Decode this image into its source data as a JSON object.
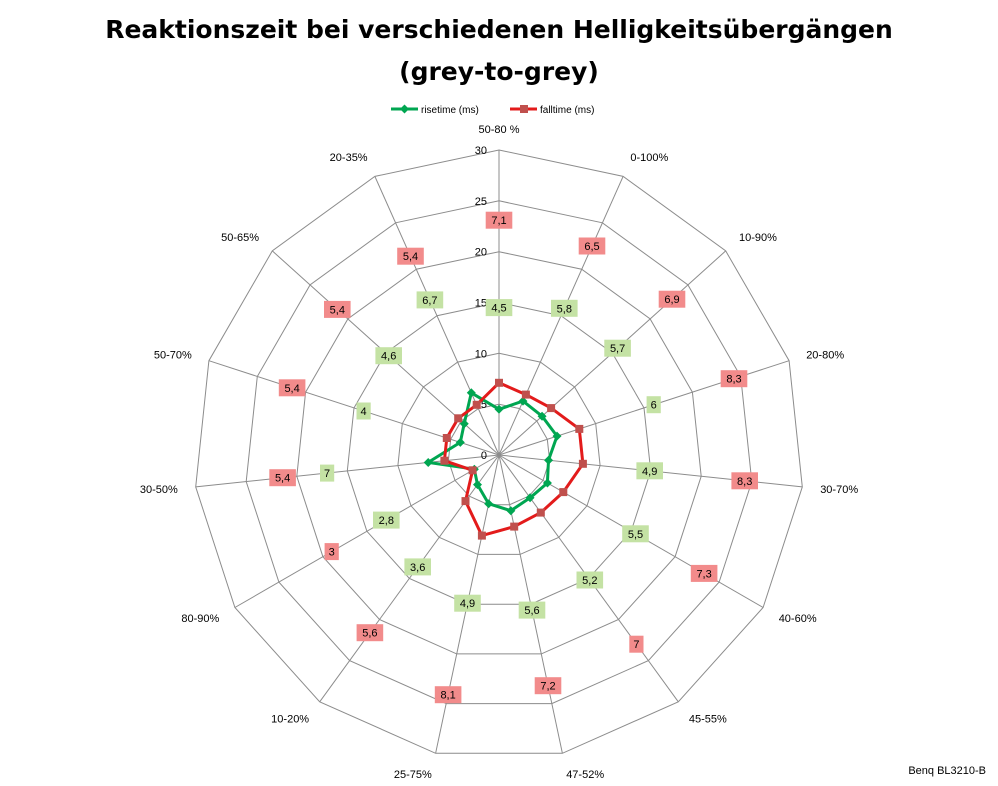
{
  "chart_data": {
    "type": "radar",
    "title": "Reaktionszeit bei verschiedenen Helligkeitsübergängen",
    "subtitle": "(grey-to-grey)",
    "categories": [
      "50-80 %",
      "0-100%",
      "10-90%",
      "20-80%",
      "30-70%",
      "40-60%",
      "45-55%",
      "47-52%",
      "25-75%",
      "10-20%",
      "80-90%",
      "30-50%",
      "50-70%",
      "50-65%",
      "20-35%"
    ],
    "radial_ticks": [
      "0",
      "5",
      "10",
      "15",
      "20",
      "25",
      "30"
    ],
    "rmax": 30,
    "grid": true,
    "legend_position": "top",
    "series": [
      {
        "name": "risetime (ms)",
        "color": "#00a651",
        "label_bg": "#c4e2a4",
        "marker": "diamond",
        "values": [
          4.5,
          5.8,
          5.7,
          6,
          4.9,
          5.5,
          5.2,
          5.6,
          4.9,
          3.6,
          2.8,
          7,
          4,
          4.6,
          6.7
        ],
        "labels": [
          "4,5",
          "5,8",
          "5,7",
          "6",
          "4,9",
          "5,5",
          "5,2",
          "5,6",
          "4,9",
          "3,6",
          "2,8",
          "7",
          "4",
          "4,6",
          "6,7"
        ]
      },
      {
        "name": "falltime (ms)",
        "color": "#e31b1b",
        "label_bg": "#f28b8b",
        "marker": "square",
        "values": [
          7.1,
          6.5,
          6.9,
          8.3,
          8.3,
          7.3,
          7,
          7.2,
          8.1,
          5.6,
          3,
          5.4,
          5.4,
          5.4,
          5.4
        ],
        "labels": [
          "7,1",
          "6,5",
          "6,9",
          "8,3",
          "8,3",
          "7,3",
          "7",
          "7,2",
          "8,1",
          "5,6",
          "3",
          "5,4",
          "5,4",
          "5,4",
          "5,4"
        ]
      }
    ]
  },
  "footer": {
    "credit": "Benq BL3210-B"
  }
}
